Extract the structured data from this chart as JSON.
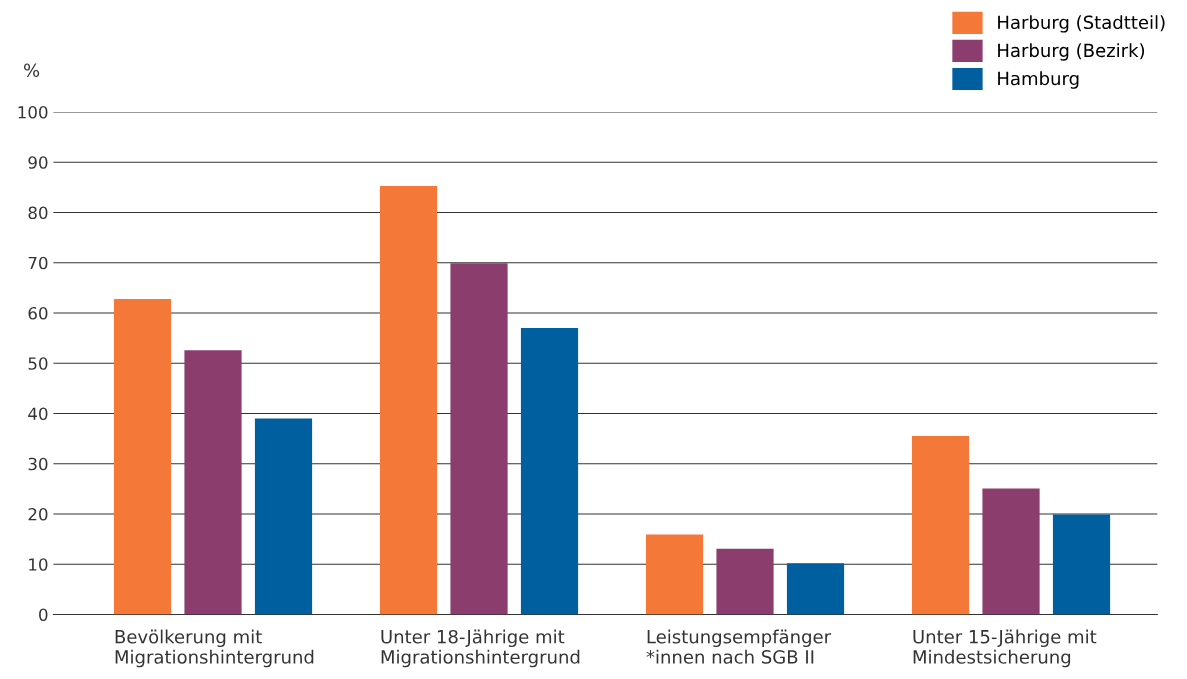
{
  "chart_data": {
    "type": "bar",
    "ylabel": "%",
    "categories": [
      "Bevölkerung mit\nMigrationshintergrund",
      "Unter 18-Jährige mit\nMigrationshintergrund",
      "Leistungsempfänger\n*innen nach SGB II",
      "Unter 15-Jährige mit\nMindestsicherung"
    ],
    "series": [
      {
        "name": "Harburg (Stadtteil)",
        "color": "#f47838",
        "values": [
          62.8,
          85.3,
          15.9,
          35.5
        ]
      },
      {
        "name": "Harburg (Bezirk)",
        "color": "#8b3e6e",
        "values": [
          52.6,
          69.9,
          13.1,
          25.1
        ]
      },
      {
        "name": "Hamburg",
        "color": "#005f9e",
        "values": [
          39.0,
          57.0,
          10.2,
          19.9
        ]
      }
    ],
    "ylim": [
      0,
      100
    ],
    "yticks": [
      0,
      10,
      20,
      30,
      40,
      50,
      60,
      70,
      80,
      90,
      100
    ],
    "grid": "y",
    "legend": "top right"
  }
}
